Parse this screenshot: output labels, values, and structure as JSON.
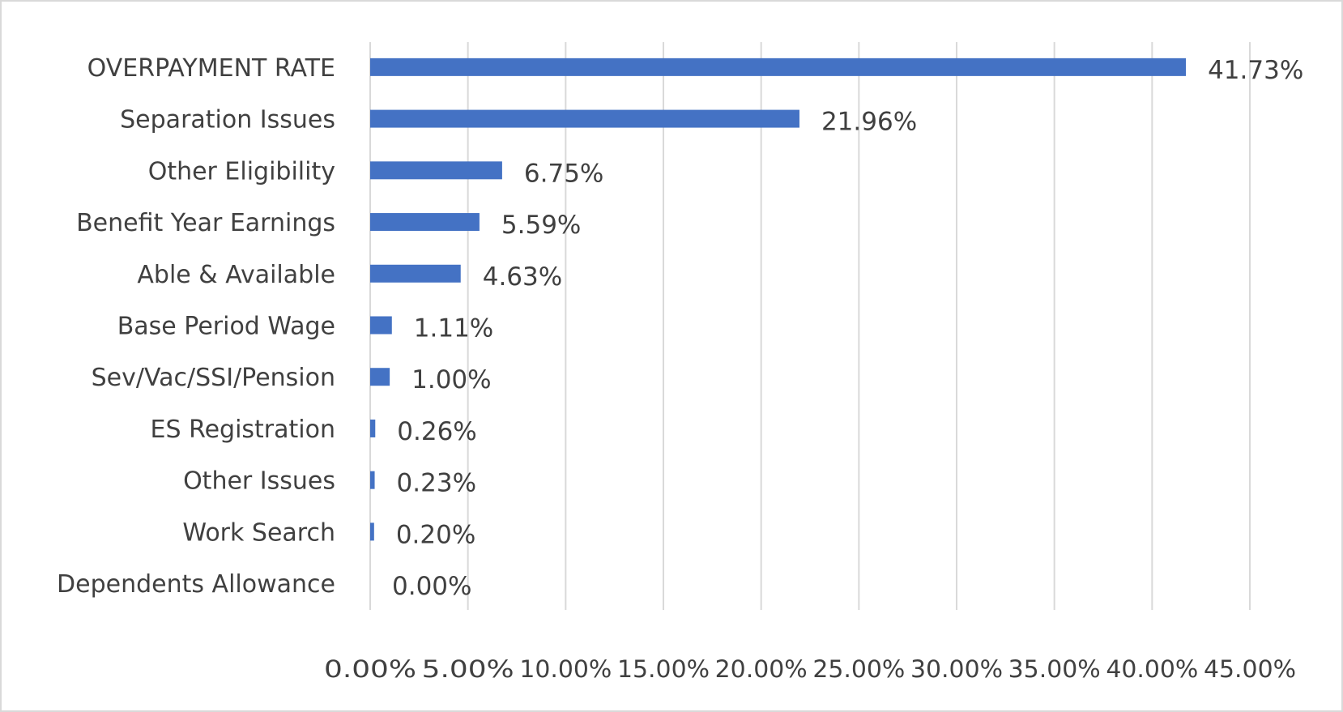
{
  "chart_data": {
    "type": "bar",
    "orientation": "horizontal",
    "title": "",
    "xlabel": "",
    "ylabel": "",
    "categories": [
      "OVERPAYMENT RATE",
      "Separation Issues",
      "Other Eligibility",
      "Benefit Year Earnings",
      "Able & Available",
      "Base Period Wage",
      "Sev/Vac/SSI/Pension",
      "ES Registration",
      "Other Issues",
      "Work Search",
      "Dependents Allowance"
    ],
    "values": [
      41.73,
      21.96,
      6.75,
      5.59,
      4.63,
      1.11,
      1.0,
      0.26,
      0.23,
      0.2,
      0.0
    ],
    "data_labels": [
      "41.73%",
      "21.96%",
      "6.75%",
      "5.59%",
      "4.63%",
      "1.11%",
      "1.00%",
      "0.26%",
      "0.23%",
      "0.20%",
      "0.00%"
    ],
    "xlim": [
      0,
      45
    ],
    "x_ticks": [
      0,
      5,
      10,
      15,
      20,
      25,
      30,
      35,
      40,
      45
    ],
    "x_tick_labels": [
      "0.00%",
      "5.00%",
      "10.00%",
      "15.00%",
      "20.00%",
      "25.00%",
      "30.00%",
      "35.00%",
      "40.00%",
      "45.00%"
    ],
    "grid": "vertical",
    "legend": "none",
    "colors": {
      "bar": "#4472C4",
      "grid": "#D9D9D9",
      "text": "#404040",
      "border": "#D9D9D9"
    }
  }
}
